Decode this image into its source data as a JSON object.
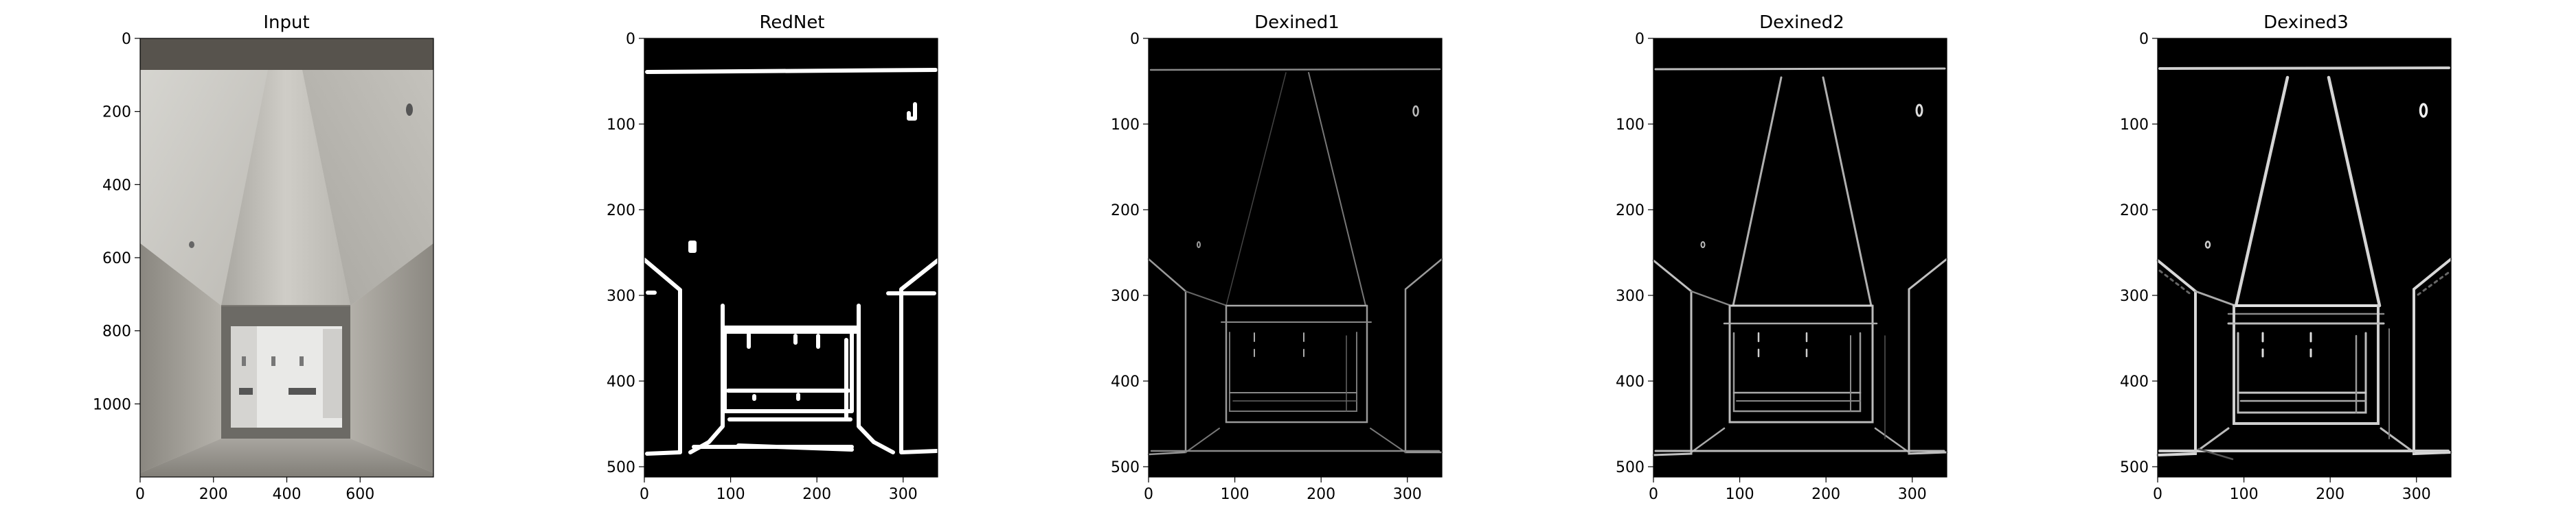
{
  "chart_data": [
    {
      "type": "image",
      "title": "Input",
      "xlim": [
        0,
        800
      ],
      "ylim": [
        1200,
        0
      ],
      "xticks": [
        "0",
        "200",
        "400",
        "600"
      ],
      "xtick_values": [
        0,
        200,
        400,
        600
      ],
      "yticks": [
        "0",
        "200",
        "400",
        "600",
        "800",
        "1000"
      ],
      "ytick_values": [
        0,
        200,
        400,
        600,
        800,
        1000
      ],
      "content": "photo of a white interior corridor with a skylight ceiling and a window at the end"
    },
    {
      "type": "image",
      "title": "RedNet",
      "xlim": [
        0,
        340
      ],
      "ylim": [
        512,
        0
      ],
      "xticks": [
        "0",
        "100",
        "200",
        "300"
      ],
      "xtick_values": [
        0,
        100,
        200,
        300
      ],
      "yticks": [
        "0",
        "100",
        "200",
        "300",
        "400",
        "500"
      ],
      "ytick_values": [
        0,
        100,
        200,
        300,
        400,
        500
      ],
      "content": "binary edge map, thick white edges on black"
    },
    {
      "type": "image",
      "title": "Dexined1",
      "xlim": [
        0,
        340
      ],
      "ylim": [
        512,
        0
      ],
      "xticks": [
        "0",
        "100",
        "200",
        "300"
      ],
      "xtick_values": [
        0,
        100,
        200,
        300
      ],
      "yticks": [
        "0",
        "100",
        "200",
        "300",
        "400",
        "500"
      ],
      "ytick_values": [
        0,
        100,
        200,
        300,
        400,
        500
      ],
      "content": "thin grayscale edge map"
    },
    {
      "type": "image",
      "title": "Dexined2",
      "xlim": [
        0,
        340
      ],
      "ylim": [
        512,
        0
      ],
      "xticks": [
        "0",
        "100",
        "200",
        "300"
      ],
      "xtick_values": [
        0,
        100,
        200,
        300
      ],
      "yticks": [
        "0",
        "100",
        "200",
        "300",
        "400",
        "500"
      ],
      "ytick_values": [
        0,
        100,
        200,
        300,
        400,
        500
      ],
      "content": "grayscale edge map"
    },
    {
      "type": "image",
      "title": "Dexined3",
      "xlim": [
        0,
        340
      ],
      "ylim": [
        512,
        0
      ],
      "xticks": [
        "0",
        "100",
        "200",
        "300"
      ],
      "xtick_values": [
        0,
        100,
        200,
        300
      ],
      "yticks": [
        "0",
        "100",
        "200",
        "300",
        "400",
        "500"
      ],
      "ytick_values": [
        0,
        100,
        200,
        300,
        400,
        500
      ],
      "content": "brighter, thicker grayscale edge map"
    }
  ]
}
